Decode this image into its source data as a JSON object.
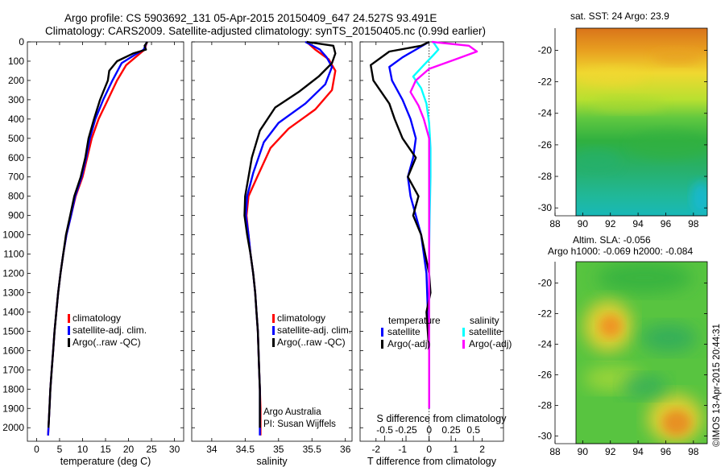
{
  "header": {
    "line1": "Argo profile: CS 5903692_131 05-Apr-2015 20150409_647 24.527S 93.491E",
    "line2": "Climatology: CARS2009. Satellite-adjusted climatology: synTS_20150405.nc (0.99d earlier)"
  },
  "credits": {
    "agency": "Argo Australia",
    "pi": "PI: Susan Wijffels",
    "stamp": "©IMOS 13-Apr-2015 20:44:31"
  },
  "colors": {
    "climatology": "#ff0000",
    "satellite": "#0000ff",
    "argo": "#000000",
    "satellite_sal": "#00ffff",
    "argo_sal": "#ff00ff"
  },
  "chart_data": [
    {
      "type": "line",
      "panel": "temperature",
      "xlabel": "temperature (deg C)",
      "ylabel": "",
      "xlim": [
        -2,
        32
      ],
      "ylim": [
        2070,
        0
      ],
      "xticks": [
        0,
        5,
        10,
        15,
        20,
        25,
        30
      ],
      "yticks": [
        0,
        100,
        200,
        300,
        400,
        500,
        600,
        700,
        800,
        900,
        1000,
        1100,
        1200,
        1300,
        1400,
        1500,
        1600,
        1700,
        1800,
        1900,
        2000
      ],
      "legend": [
        "climatology",
        "satellite-adj. clim.",
        "Argo(..raw -QC)"
      ],
      "series": [
        {
          "name": "climatology",
          "color": "#ff0000",
          "points": [
            [
              24,
              0
            ],
            [
              23.5,
              40
            ],
            [
              22,
              70
            ],
            [
              19.5,
              120
            ],
            [
              17.5,
              200
            ],
            [
              15.5,
              300
            ],
            [
              13.5,
              400
            ],
            [
              12,
              500
            ],
            [
              11,
              600
            ],
            [
              10,
              700
            ],
            [
              8.5,
              800
            ],
            [
              7.5,
              900
            ],
            [
              6.5,
              1000
            ],
            [
              5.8,
              1100
            ],
            [
              5.2,
              1200
            ],
            [
              4.7,
              1300
            ],
            [
              4.3,
              1400
            ],
            [
              3.9,
              1500
            ],
            [
              3.6,
              1600
            ],
            [
              3.3,
              1700
            ],
            [
              3,
              1800
            ],
            [
              2.8,
              1900
            ],
            [
              2.6,
              2000
            ],
            [
              2.5,
              2040
            ]
          ]
        },
        {
          "name": "satellite-adj. clim.",
          "color": "#0000ff",
          "points": [
            [
              24,
              0
            ],
            [
              23.3,
              40
            ],
            [
              21.5,
              65
            ],
            [
              18.5,
              110
            ],
            [
              16.5,
              200
            ],
            [
              14.5,
              300
            ],
            [
              12.8,
              400
            ],
            [
              11.6,
              500
            ],
            [
              10.8,
              600
            ],
            [
              9.8,
              700
            ],
            [
              8.4,
              800
            ],
            [
              7.5,
              900
            ],
            [
              6.5,
              1000
            ],
            [
              5.8,
              1100
            ],
            [
              5.2,
              1200
            ],
            [
              4.7,
              1300
            ],
            [
              4.3,
              1400
            ],
            [
              3.9,
              1500
            ],
            [
              3.6,
              1600
            ],
            [
              3.3,
              1700
            ],
            [
              3,
              1800
            ],
            [
              2.8,
              1900
            ],
            [
              2.6,
              2000
            ],
            [
              2.5,
              2040
            ]
          ]
        },
        {
          "name": "Argo(..raw -QC)",
          "color": "#000000",
          "points": [
            [
              24.1,
              0
            ],
            [
              23.5,
              20
            ],
            [
              23.8,
              40
            ],
            [
              21,
              60
            ],
            [
              17.5,
              100
            ],
            [
              15.8,
              150
            ],
            [
              15.5,
              200
            ],
            [
              13.8,
              300
            ],
            [
              12.5,
              400
            ],
            [
              11.3,
              500
            ],
            [
              10.6,
              600
            ],
            [
              9.6,
              700
            ],
            [
              8.2,
              800
            ],
            [
              7.3,
              900
            ],
            [
              6.4,
              1000
            ],
            [
              5.8,
              1100
            ],
            [
              5.2,
              1200
            ],
            [
              4.7,
              1300
            ],
            [
              4.3,
              1400
            ],
            [
              3.9,
              1500
            ],
            [
              3.6,
              1600
            ],
            [
              3.3,
              1700
            ],
            [
              3,
              1800
            ],
            [
              2.8,
              1900
            ],
            [
              2.6,
              2000
            ]
          ]
        }
      ]
    },
    {
      "type": "line",
      "panel": "salinity",
      "xlabel": "salinity",
      "ylabel": "",
      "xlim": [
        33.7,
        36.1
      ],
      "ylim": [
        2070,
        0
      ],
      "xticks": [
        34,
        34.5,
        35,
        35.5,
        36
      ],
      "legend": [
        "climatology",
        "satellite-adj. clim.",
        "Argo(..raw -QC)"
      ],
      "series": [
        {
          "name": "climatology",
          "color": "#ff0000",
          "points": [
            [
              35.42,
              0
            ],
            [
              35.55,
              40
            ],
            [
              35.75,
              90
            ],
            [
              35.85,
              150
            ],
            [
              35.8,
              250
            ],
            [
              35.55,
              350
            ],
            [
              35.15,
              450
            ],
            [
              34.88,
              550
            ],
            [
              34.68,
              700
            ],
            [
              34.55,
              800
            ],
            [
              34.52,
              900
            ],
            [
              34.55,
              1000
            ],
            [
              34.58,
              1100
            ],
            [
              34.62,
              1200
            ],
            [
              34.65,
              1300
            ],
            [
              34.67,
              1400
            ],
            [
              34.69,
              1500
            ],
            [
              34.7,
              1600
            ],
            [
              34.71,
              1700
            ],
            [
              34.72,
              1800
            ],
            [
              34.73,
              1900
            ],
            [
              34.73,
              2000
            ],
            [
              34.73,
              2040
            ]
          ]
        },
        {
          "name": "satellite-adj. clim.",
          "color": "#0000ff",
          "points": [
            [
              35.4,
              0
            ],
            [
              35.62,
              40
            ],
            [
              35.72,
              80
            ],
            [
              35.8,
              130
            ],
            [
              35.7,
              220
            ],
            [
              35.4,
              320
            ],
            [
              35,
              420
            ],
            [
              34.78,
              520
            ],
            [
              34.62,
              680
            ],
            [
              34.53,
              800
            ],
            [
              34.51,
              900
            ],
            [
              34.55,
              1000
            ],
            [
              34.58,
              1100
            ],
            [
              34.62,
              1200
            ],
            [
              34.65,
              1300
            ],
            [
              34.67,
              1400
            ],
            [
              34.69,
              1500
            ],
            [
              34.7,
              1600
            ],
            [
              34.71,
              1700
            ],
            [
              34.72,
              1800
            ],
            [
              34.72,
              1900
            ],
            [
              34.72,
              2000
            ],
            [
              34.72,
              2040
            ]
          ]
        },
        {
          "name": "Argo(..raw -QC)",
          "color": "#000000",
          "points": [
            [
              35.42,
              0
            ],
            [
              35.82,
              20
            ],
            [
              35.85,
              60
            ],
            [
              35.8,
              110
            ],
            [
              35.6,
              180
            ],
            [
              35.3,
              260
            ],
            [
              34.95,
              340
            ],
            [
              34.72,
              460
            ],
            [
              34.6,
              600
            ],
            [
              34.55,
              700
            ],
            [
              34.5,
              800
            ],
            [
              34.49,
              900
            ],
            [
              34.53,
              1000
            ],
            [
              34.58,
              1100
            ],
            [
              34.62,
              1200
            ],
            [
              34.65,
              1300
            ],
            [
              34.67,
              1400
            ],
            [
              34.69,
              1500
            ],
            [
              34.7,
              1600
            ],
            [
              34.71,
              1700
            ],
            [
              34.72,
              1800
            ],
            [
              34.72,
              1900
            ],
            [
              34.72,
              2000
            ]
          ]
        }
      ]
    },
    {
      "type": "line",
      "panel": "difference",
      "xlabel": "T difference from climatology",
      "xlabel_top": "S difference from climatology",
      "xlim": [
        -2.6,
        2.8
      ],
      "ylim": [
        2070,
        0
      ],
      "xticks": [
        -2,
        -1,
        0,
        1,
        2
      ],
      "sticks": [
        {
          "v": -1.67,
          "t": "-0.5"
        },
        {
          "v": -0.87,
          "t": "-0.25"
        },
        {
          "v": 0,
          "t": "0"
        },
        {
          "v": 0.83,
          "t": "0.25"
        },
        {
          "v": 1.67,
          "t": "0.5"
        }
      ],
      "legend_groups": [
        "temperature",
        "salinity"
      ],
      "legend": [
        "satellite",
        "Argo(-adj)",
        "satellite",
        "Argo(-adj)"
      ],
      "series": [
        {
          "name": "satellite",
          "color": "#0000ff",
          "points": [
            [
              0,
              0
            ],
            [
              -0.5,
              40
            ],
            [
              -1,
              80
            ],
            [
              -1.5,
              130
            ],
            [
              -1.4,
              200
            ],
            [
              -1,
              300
            ],
            [
              -0.7,
              400
            ],
            [
              -0.5,
              500
            ],
            [
              -0.6,
              600
            ],
            [
              -0.8,
              700
            ],
            [
              -0.7,
              800
            ],
            [
              -0.5,
              900
            ],
            [
              -0.3,
              1000
            ],
            [
              -0.2,
              1100
            ],
            [
              -0.1,
              1200
            ],
            [
              -0.05,
              1400
            ],
            [
              0,
              1600
            ],
            [
              0,
              1800
            ],
            [
              0,
              1900
            ]
          ]
        },
        {
          "name": "Argo(-adj)",
          "color": "#000000",
          "points": [
            [
              0,
              0
            ],
            [
              -0.3,
              20
            ],
            [
              -1.5,
              50
            ],
            [
              -2.2,
              120
            ],
            [
              -2.1,
              200
            ],
            [
              -1.8,
              260
            ],
            [
              -1.5,
              320
            ],
            [
              -1.3,
              400
            ],
            [
              -1,
              500
            ],
            [
              -0.5,
              600
            ],
            [
              -0.8,
              700
            ],
            [
              -0.4,
              800
            ],
            [
              -0.6,
              900
            ],
            [
              -0.3,
              1000
            ],
            [
              -0.15,
              1100
            ],
            [
              0,
              1200
            ],
            [
              0.05,
              1300
            ],
            [
              -0.1,
              1400
            ],
            [
              0,
              1600
            ],
            [
              0,
              1800
            ],
            [
              0,
              1900
            ]
          ]
        },
        {
          "name": "satellite",
          "color": "#00ffff",
          "points": [
            [
              0.15,
              0
            ],
            [
              0.35,
              40
            ],
            [
              0.15,
              70
            ],
            [
              -0.2,
              120
            ],
            [
              -0.6,
              180
            ],
            [
              -0.3,
              240
            ],
            [
              -0.1,
              320
            ],
            [
              0,
              420
            ],
            [
              0.05,
              550
            ],
            [
              0.05,
              700
            ],
            [
              0.02,
              900
            ],
            [
              0,
              1100
            ],
            [
              0,
              1300
            ],
            [
              0,
              1600
            ],
            [
              0,
              1900
            ]
          ]
        },
        {
          "name": "Argo(-adj)",
          "color": "#ff00ff",
          "points": [
            [
              0.1,
              0
            ],
            [
              1.5,
              20
            ],
            [
              1.8,
              50
            ],
            [
              1,
              90
            ],
            [
              0,
              140
            ],
            [
              -0.5,
              200
            ],
            [
              -0.7,
              260
            ],
            [
              -0.4,
              330
            ],
            [
              -0.2,
              400
            ],
            [
              0,
              500
            ],
            [
              0,
              600
            ],
            [
              0,
              800
            ],
            [
              0,
              1000
            ],
            [
              0,
              1200
            ],
            [
              0,
              1400
            ],
            [
              0,
              1600
            ],
            [
              0,
              1900
            ]
          ]
        }
      ]
    },
    {
      "type": "heatmap",
      "panel": "sst-map",
      "title": "sat. SST: 24 Argo: 23.9",
      "xlim": [
        88,
        99
      ],
      "ylim": [
        -30.5,
        -18.6
      ],
      "xticks": [
        88,
        90,
        92,
        94,
        96,
        98
      ],
      "yticks": [
        -20,
        -22,
        -24,
        -26,
        -28,
        -30
      ]
    },
    {
      "type": "heatmap",
      "panel": "sla-map",
      "title": "Altim. SLA: -0.056",
      "subtitle": "Argo h1000: -0.069 h2000: -0.084",
      "xlim": [
        88,
        99
      ],
      "ylim": [
        -30.5,
        -18.6
      ],
      "xticks": [
        88,
        90,
        92,
        94,
        96,
        98
      ],
      "yticks": [
        -20,
        -22,
        -24,
        -26,
        -28,
        -30
      ]
    }
  ]
}
